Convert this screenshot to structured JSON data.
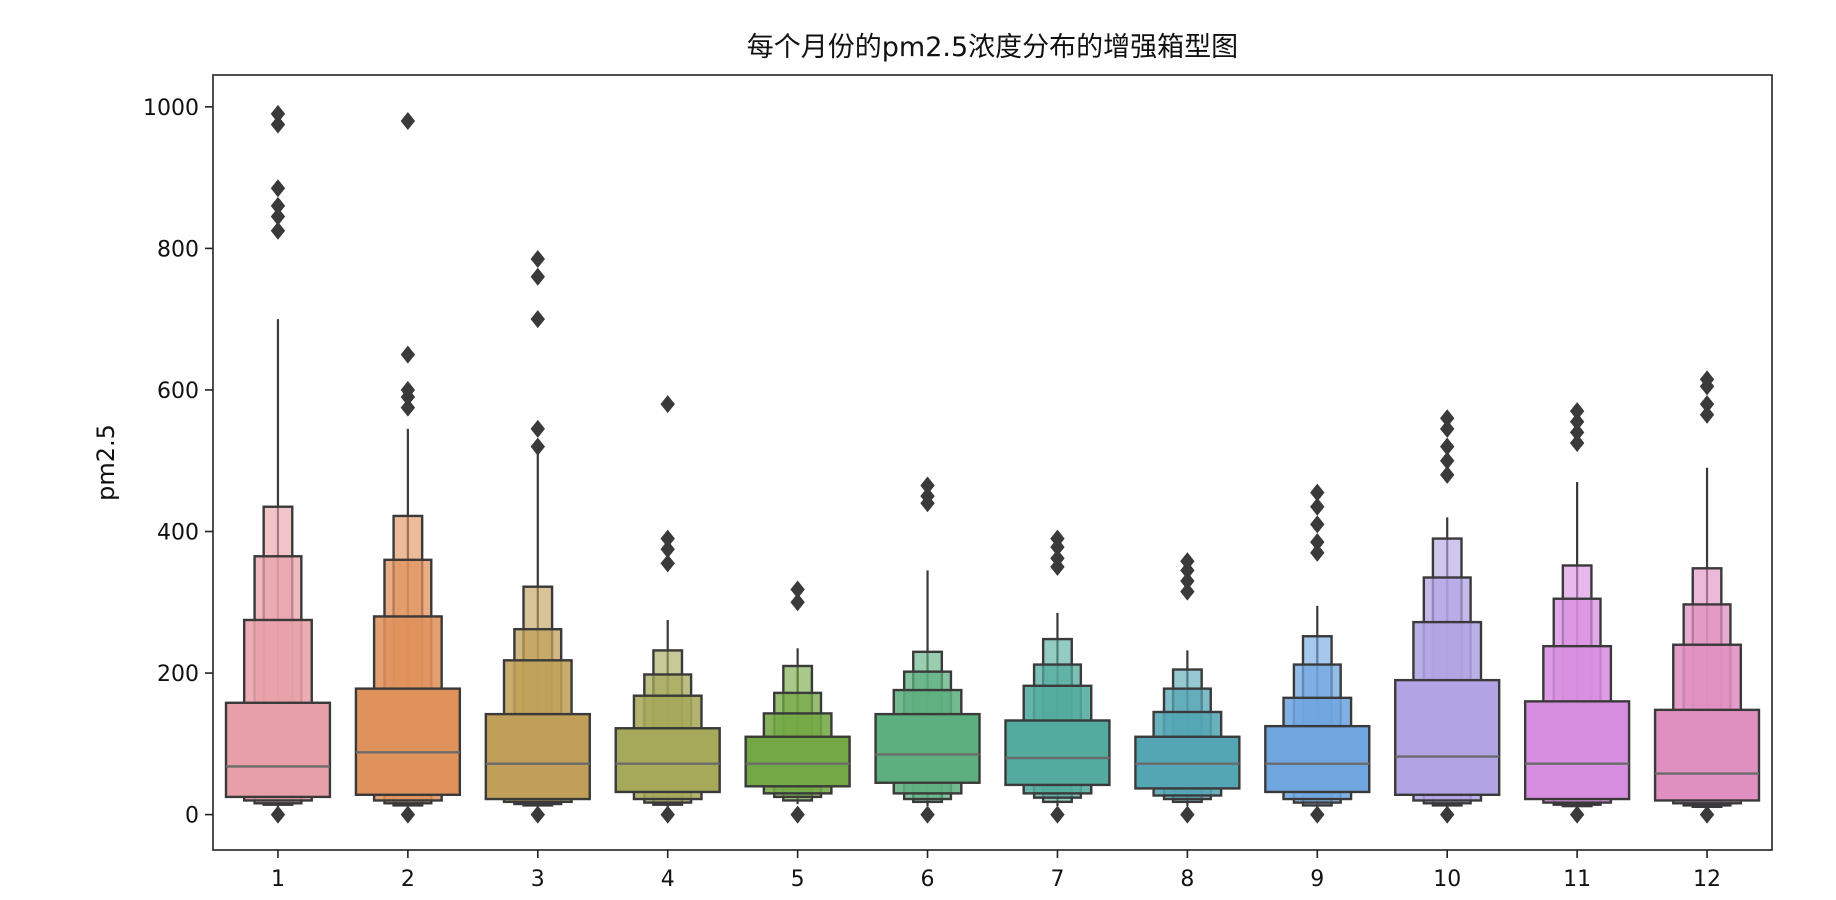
{
  "chart_data": {
    "type": "boxen",
    "title": "每个月份的pm2.5浓度分布的增强箱型图",
    "xlabel": "",
    "ylabel": "pm2.5",
    "ylim": [
      -50,
      1045
    ],
    "yticks": [
      0,
      200,
      400,
      600,
      800,
      1000
    ],
    "grid": false,
    "categories": [
      "1",
      "2",
      "3",
      "4",
      "5",
      "6",
      "7",
      "8",
      "9",
      "10",
      "11",
      "12"
    ],
    "series": [
      {
        "category": "1",
        "color": "#e8a0a8",
        "median": 68,
        "boxes": [
          {
            "lo": 25,
            "hi": 158
          },
          {
            "lo": 20,
            "hi": 275
          },
          {
            "lo": 16,
            "hi": 365
          },
          {
            "lo": 14,
            "hi": 435
          }
        ],
        "whisker": [
          10,
          700
        ],
        "outliers": [
          990,
          975,
          885,
          860,
          845,
          825,
          0
        ]
      },
      {
        "category": "2",
        "color": "#e0925c",
        "median": 88,
        "boxes": [
          {
            "lo": 28,
            "hi": 178
          },
          {
            "lo": 20,
            "hi": 280
          },
          {
            "lo": 16,
            "hi": 360
          },
          {
            "lo": 13,
            "hi": 422
          }
        ],
        "whisker": [
          10,
          545
        ],
        "outliers": [
          980,
          650,
          600,
          590,
          575,
          0
        ]
      },
      {
        "category": "3",
        "color": "#c0a058",
        "median": 72,
        "boxes": [
          {
            "lo": 22,
            "hi": 142
          },
          {
            "lo": 18,
            "hi": 218
          },
          {
            "lo": 15,
            "hi": 262
          },
          {
            "lo": 13,
            "hi": 322
          }
        ],
        "whisker": [
          10,
          510
        ],
        "outliers": [
          785,
          760,
          700,
          545,
          520,
          0
        ]
      },
      {
        "category": "4",
        "color": "#a6a85a",
        "median": 72,
        "boxes": [
          {
            "lo": 32,
            "hi": 122
          },
          {
            "lo": 22,
            "hi": 168
          },
          {
            "lo": 17,
            "hi": 198
          },
          {
            "lo": 14,
            "hi": 232
          }
        ],
        "whisker": [
          10,
          275
        ],
        "outliers": [
          580,
          390,
          375,
          355,
          0
        ]
      },
      {
        "category": "5",
        "color": "#74a844",
        "median": 72,
        "boxes": [
          {
            "lo": 40,
            "hi": 110
          },
          {
            "lo": 30,
            "hi": 143
          },
          {
            "lo": 25,
            "hi": 172
          },
          {
            "lo": 20,
            "hi": 210
          }
        ],
        "whisker": [
          15,
          235
        ],
        "outliers": [
          318,
          300,
          0
        ]
      },
      {
        "category": "6",
        "color": "#5eaf80",
        "median": 85,
        "boxes": [
          {
            "lo": 45,
            "hi": 142
          },
          {
            "lo": 30,
            "hi": 176
          },
          {
            "lo": 22,
            "hi": 202
          },
          {
            "lo": 18,
            "hi": 230
          }
        ],
        "whisker": [
          12,
          345
        ],
        "outliers": [
          465,
          450,
          440,
          0
        ]
      },
      {
        "category": "7",
        "color": "#52ab9e",
        "median": 80,
        "boxes": [
          {
            "lo": 42,
            "hi": 133
          },
          {
            "lo": 30,
            "hi": 182
          },
          {
            "lo": 24,
            "hi": 212
          },
          {
            "lo": 18,
            "hi": 248
          }
        ],
        "whisker": [
          12,
          285
        ],
        "outliers": [
          390,
          378,
          362,
          350,
          0
        ]
      },
      {
        "category": "8",
        "color": "#54a6b4",
        "median": 72,
        "boxes": [
          {
            "lo": 37,
            "hi": 110
          },
          {
            "lo": 27,
            "hi": 145
          },
          {
            "lo": 22,
            "hi": 178
          },
          {
            "lo": 18,
            "hi": 205
          }
        ],
        "whisker": [
          12,
          232
        ],
        "outliers": [
          358,
          345,
          330,
          315,
          0
        ]
      },
      {
        "category": "9",
        "color": "#70a6e0",
        "median": 72,
        "boxes": [
          {
            "lo": 32,
            "hi": 125
          },
          {
            "lo": 22,
            "hi": 165
          },
          {
            "lo": 17,
            "hi": 212
          },
          {
            "lo": 13,
            "hi": 252
          }
        ],
        "whisker": [
          10,
          295
        ],
        "outliers": [
          455,
          435,
          410,
          385,
          370,
          0
        ]
      },
      {
        "category": "10",
        "color": "#b2a4e4",
        "median": 82,
        "boxes": [
          {
            "lo": 28,
            "hi": 190
          },
          {
            "lo": 20,
            "hi": 272
          },
          {
            "lo": 16,
            "hi": 335
          },
          {
            "lo": 13,
            "hi": 390
          }
        ],
        "whisker": [
          10,
          420
        ],
        "outliers": [
          560,
          545,
          520,
          500,
          480,
          0
        ]
      },
      {
        "category": "11",
        "color": "#d88ee0",
        "median": 72,
        "boxes": [
          {
            "lo": 22,
            "hi": 160
          },
          {
            "lo": 17,
            "hi": 238
          },
          {
            "lo": 14,
            "hi": 305
          },
          {
            "lo": 12,
            "hi": 352
          }
        ],
        "whisker": [
          10,
          470
        ],
        "outliers": [
          570,
          555,
          540,
          525,
          0
        ]
      },
      {
        "category": "12",
        "color": "#e090c0",
        "median": 58,
        "boxes": [
          {
            "lo": 20,
            "hi": 148
          },
          {
            "lo": 16,
            "hi": 240
          },
          {
            "lo": 13,
            "hi": 297
          },
          {
            "lo": 11,
            "hi": 348
          }
        ],
        "whisker": [
          10,
          490
        ],
        "outliers": [
          615,
          605,
          580,
          565,
          0
        ]
      }
    ]
  }
}
